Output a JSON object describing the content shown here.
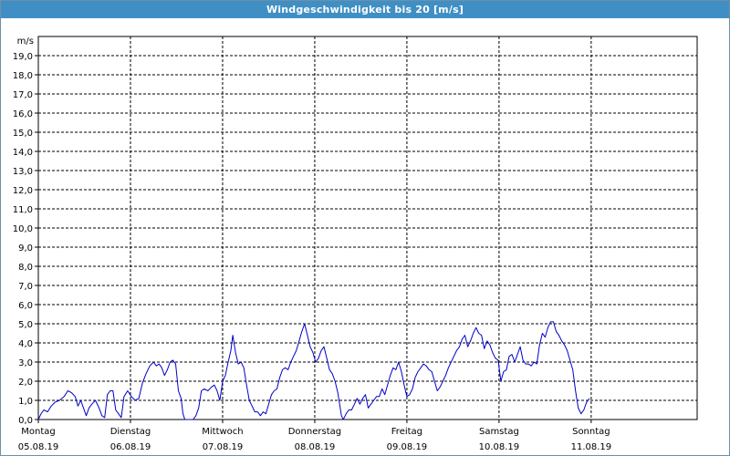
{
  "window": {
    "title": "Windgeschwindigkeit bis 20 [m/s]"
  },
  "chart_data": {
    "type": "line",
    "title": "Windgeschwindigkeit bis 20 [m/s]",
    "unit_label": "m/s",
    "ylim": [
      0,
      20
    ],
    "y_ticks": [
      "0,0",
      "1,0",
      "2,0",
      "3,0",
      "4,0",
      "5,0",
      "6,0",
      "7,0",
      "8,0",
      "9,0",
      "10,0",
      "11,0",
      "12,0",
      "13,0",
      "14,0",
      "15,0",
      "16,0",
      "17,0",
      "18,0",
      "19,0"
    ],
    "x_range_days": [
      0,
      7.15
    ],
    "x_ticks": [
      {
        "day": "Montag",
        "date": "05.08.19"
      },
      {
        "day": "Dienstag",
        "date": "06.08.19"
      },
      {
        "day": "Mittwoch",
        "date": "07.08.19"
      },
      {
        "day": "Donnerstag",
        "date": "08.08.19"
      },
      {
        "day": "Freitag",
        "date": "09.08.19"
      },
      {
        "day": "Samstag",
        "date": "10.08.19"
      },
      {
        "day": "Sonntag",
        "date": "11.08.19"
      }
    ],
    "grid": true,
    "line_color": "#0000c8",
    "series": [
      {
        "points": [
          [
            0.0,
            0.0
          ],
          [
            0.03,
            0.3
          ],
          [
            0.06,
            0.5
          ],
          [
            0.1,
            0.4
          ],
          [
            0.14,
            0.7
          ],
          [
            0.18,
            0.9
          ],
          [
            0.23,
            1.0
          ],
          [
            0.28,
            1.2
          ],
          [
            0.32,
            1.5
          ],
          [
            0.36,
            1.4
          ],
          [
            0.4,
            1.2
          ],
          [
            0.43,
            0.7
          ],
          [
            0.46,
            1.0
          ],
          [
            0.49,
            0.6
          ],
          [
            0.52,
            0.2
          ],
          [
            0.55,
            0.6
          ],
          [
            0.58,
            0.8
          ],
          [
            0.62,
            1.0
          ],
          [
            0.66,
            0.6
          ],
          [
            0.69,
            0.2
          ],
          [
            0.72,
            0.1
          ],
          [
            0.75,
            1.3
          ],
          [
            0.78,
            1.5
          ],
          [
            0.81,
            1.5
          ],
          [
            0.84,
            0.5
          ],
          [
            0.87,
            0.3
          ],
          [
            0.9,
            0.1
          ],
          [
            0.93,
            1.2
          ],
          [
            0.97,
            1.5
          ],
          [
            1.01,
            1.2
          ],
          [
            1.05,
            1.0
          ],
          [
            1.09,
            1.1
          ],
          [
            1.13,
            1.9
          ],
          [
            1.17,
            2.4
          ],
          [
            1.21,
            2.8
          ],
          [
            1.25,
            3.0
          ],
          [
            1.28,
            2.8
          ],
          [
            1.31,
            2.9
          ],
          [
            1.34,
            2.7
          ],
          [
            1.37,
            2.3
          ],
          [
            1.4,
            2.6
          ],
          [
            1.43,
            3.0
          ],
          [
            1.46,
            3.1
          ],
          [
            1.49,
            2.9
          ],
          [
            1.52,
            1.5
          ],
          [
            1.55,
            1.1
          ],
          [
            1.57,
            0.3
          ],
          [
            1.59,
            0.0
          ],
          [
            1.68,
            0.0
          ],
          [
            1.71,
            0.2
          ],
          [
            1.74,
            0.6
          ],
          [
            1.77,
            1.5
          ],
          [
            1.8,
            1.6
          ],
          [
            1.84,
            1.5
          ],
          [
            1.88,
            1.7
          ],
          [
            1.91,
            1.8
          ],
          [
            1.94,
            1.5
          ],
          [
            1.97,
            1.0
          ],
          [
            2.0,
            2.0
          ],
          [
            2.03,
            2.3
          ],
          [
            2.06,
            3.0
          ],
          [
            2.09,
            3.6
          ],
          [
            2.11,
            4.4
          ],
          [
            2.14,
            3.5
          ],
          [
            2.17,
            2.9
          ],
          [
            2.2,
            3.0
          ],
          [
            2.23,
            2.7
          ],
          [
            2.26,
            1.8
          ],
          [
            2.29,
            1.0
          ],
          [
            2.32,
            0.7
          ],
          [
            2.35,
            0.4
          ],
          [
            2.38,
            0.4
          ],
          [
            2.41,
            0.2
          ],
          [
            2.44,
            0.4
          ],
          [
            2.47,
            0.3
          ],
          [
            2.5,
            0.8
          ],
          [
            2.53,
            1.3
          ],
          [
            2.56,
            1.5
          ],
          [
            2.59,
            1.6
          ],
          [
            2.62,
            2.2
          ],
          [
            2.65,
            2.6
          ],
          [
            2.68,
            2.7
          ],
          [
            2.71,
            2.6
          ],
          [
            2.74,
            3.0
          ],
          [
            2.77,
            3.3
          ],
          [
            2.8,
            3.6
          ],
          [
            2.83,
            4.1
          ],
          [
            2.86,
            4.6
          ],
          [
            2.89,
            5.0
          ],
          [
            2.92,
            4.4
          ],
          [
            2.95,
            3.8
          ],
          [
            2.98,
            3.5
          ],
          [
            3.01,
            3.0
          ],
          [
            3.04,
            3.2
          ],
          [
            3.07,
            3.6
          ],
          [
            3.1,
            3.8
          ],
          [
            3.13,
            3.2
          ],
          [
            3.16,
            2.6
          ],
          [
            3.19,
            2.4
          ],
          [
            3.22,
            2.0
          ],
          [
            3.25,
            1.4
          ],
          [
            3.27,
            0.8
          ],
          [
            3.29,
            0.2
          ],
          [
            3.31,
            0.0
          ],
          [
            3.34,
            0.3
          ],
          [
            3.37,
            0.5
          ],
          [
            3.4,
            0.5
          ],
          [
            3.43,
            0.8
          ],
          [
            3.46,
            1.1
          ],
          [
            3.49,
            0.8
          ],
          [
            3.52,
            1.1
          ],
          [
            3.55,
            1.3
          ],
          [
            3.58,
            0.6
          ],
          [
            3.61,
            0.8
          ],
          [
            3.64,
            1.0
          ],
          [
            3.67,
            1.2
          ],
          [
            3.7,
            1.2
          ],
          [
            3.73,
            1.6
          ],
          [
            3.76,
            1.3
          ],
          [
            3.79,
            1.8
          ],
          [
            3.82,
            2.3
          ],
          [
            3.85,
            2.7
          ],
          [
            3.88,
            2.6
          ],
          [
            3.91,
            3.0
          ],
          [
            3.94,
            2.5
          ],
          [
            3.97,
            1.8
          ],
          [
            4.0,
            1.2
          ],
          [
            4.03,
            1.3
          ],
          [
            4.06,
            1.6
          ],
          [
            4.09,
            2.2
          ],
          [
            4.12,
            2.5
          ],
          [
            4.15,
            2.7
          ],
          [
            4.18,
            2.9
          ],
          [
            4.21,
            2.8
          ],
          [
            4.24,
            2.6
          ],
          [
            4.27,
            2.5
          ],
          [
            4.3,
            2.0
          ],
          [
            4.33,
            1.5
          ],
          [
            4.36,
            1.7
          ],
          [
            4.39,
            2.0
          ],
          [
            4.42,
            2.3
          ],
          [
            4.45,
            2.7
          ],
          [
            4.48,
            3.0
          ],
          [
            4.51,
            3.3
          ],
          [
            4.54,
            3.6
          ],
          [
            4.57,
            3.8
          ],
          [
            4.6,
            4.2
          ],
          [
            4.63,
            4.4
          ],
          [
            4.66,
            3.8
          ],
          [
            4.69,
            4.1
          ],
          [
            4.72,
            4.5
          ],
          [
            4.75,
            4.8
          ],
          [
            4.78,
            4.5
          ],
          [
            4.81,
            4.4
          ],
          [
            4.84,
            3.7
          ],
          [
            4.87,
            4.1
          ],
          [
            4.9,
            3.9
          ],
          [
            4.93,
            3.5
          ],
          [
            4.96,
            3.2
          ],
          [
            4.99,
            3.1
          ],
          [
            5.02,
            2.0
          ],
          [
            5.05,
            2.5
          ],
          [
            5.08,
            2.6
          ],
          [
            5.11,
            3.3
          ],
          [
            5.14,
            3.4
          ],
          [
            5.17,
            3.0
          ],
          [
            5.2,
            3.4
          ],
          [
            5.23,
            3.8
          ],
          [
            5.26,
            3.1
          ],
          [
            5.29,
            2.9
          ],
          [
            5.32,
            2.9
          ],
          [
            5.35,
            2.8
          ],
          [
            5.38,
            3.0
          ],
          [
            5.41,
            2.9
          ],
          [
            5.44,
            3.9
          ],
          [
            5.47,
            4.5
          ],
          [
            5.5,
            4.3
          ],
          [
            5.53,
            4.8
          ],
          [
            5.56,
            5.1
          ],
          [
            5.59,
            5.1
          ],
          [
            5.62,
            4.6
          ],
          [
            5.65,
            4.4
          ],
          [
            5.68,
            4.1
          ],
          [
            5.71,
            3.9
          ],
          [
            5.74,
            3.6
          ],
          [
            5.77,
            3.1
          ],
          [
            5.8,
            2.6
          ],
          [
            5.83,
            1.5
          ],
          [
            5.86,
            0.6
          ],
          [
            5.89,
            0.3
          ],
          [
            5.92,
            0.5
          ],
          [
            5.95,
            0.9
          ],
          [
            5.98,
            1.1
          ]
        ]
      }
    ]
  }
}
